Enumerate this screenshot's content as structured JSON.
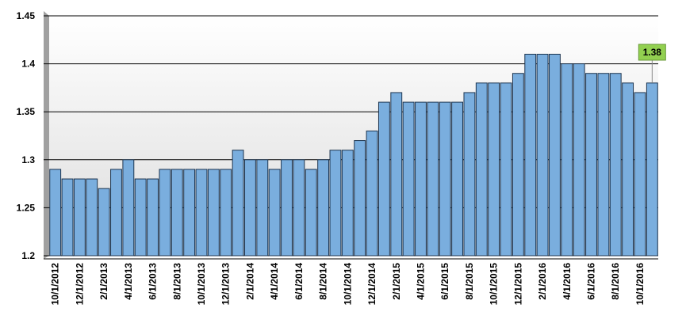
{
  "chart_data": {
    "type": "bar",
    "categories": [
      "10/1/2012",
      null,
      "12/1/2012",
      null,
      "2/1/2013",
      null,
      "4/1/2013",
      null,
      "6/1/2013",
      null,
      "8/1/2013",
      null,
      "10/1/2013",
      null,
      "12/1/2013",
      null,
      "2/1/2014",
      null,
      "4/1/2014",
      null,
      "6/1/2014",
      null,
      "8/1/2014",
      null,
      "10/1/2014",
      null,
      "12/1/2014",
      null,
      "2/1/2015",
      null,
      "4/1/2015",
      null,
      "6/1/2015",
      null,
      "8/1/2015",
      null,
      "10/1/2015",
      null,
      "12/1/2015",
      null,
      "2/1/2016",
      null,
      "4/1/2016",
      null,
      "6/1/2016",
      null,
      "8/1/2016",
      null,
      "10/1/2016",
      null
    ],
    "values": [
      1.29,
      1.28,
      1.28,
      1.28,
      1.27,
      1.29,
      1.3,
      1.28,
      1.28,
      1.29,
      1.29,
      1.29,
      1.29,
      1.29,
      1.29,
      1.31,
      1.3,
      1.3,
      1.29,
      1.3,
      1.3,
      1.29,
      1.3,
      1.31,
      1.31,
      1.32,
      1.33,
      1.36,
      1.37,
      1.36,
      1.36,
      1.36,
      1.36,
      1.36,
      1.37,
      1.38,
      1.38,
      1.38,
      1.39,
      1.41,
      1.41,
      1.41,
      1.4,
      1.4,
      1.39,
      1.39,
      1.39,
      1.38,
      1.37,
      1.38
    ],
    "color": "#7aaede",
    "ylim": [
      1.2,
      1.45
    ],
    "yticks": [
      1.2,
      1.25,
      1.3,
      1.35,
      1.4,
      1.45
    ],
    "grid": true
  }
}
